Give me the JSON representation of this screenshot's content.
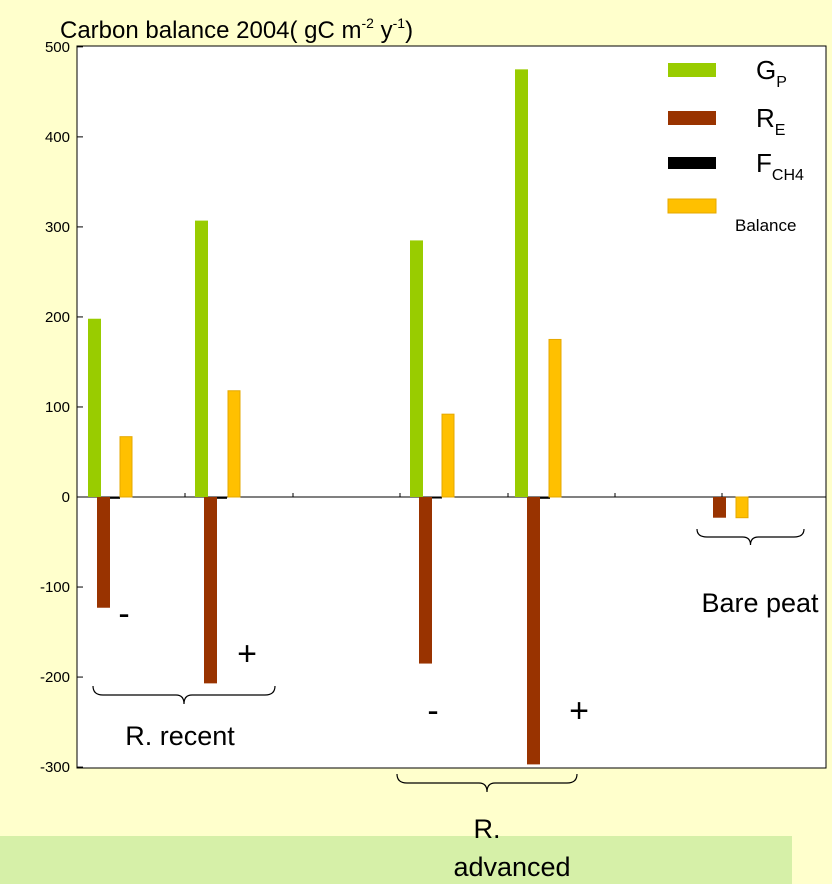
{
  "chart_data": {
    "type": "bar",
    "title": {
      "main": "Carbon balance 2004( gC m",
      "sup1": "-2",
      "mid": " y",
      "sup2": "-1",
      "end": ")"
    },
    "ylim": [
      -300,
      500
    ],
    "y_ticks": [
      "500",
      "400",
      "300",
      "200",
      "100",
      "0",
      "-100",
      "-200",
      "-300"
    ],
    "grid": false,
    "legend_position": "top-right",
    "categories": [
      "R. recent -",
      "R. recent +",
      "R. advanced -",
      "R. advanced +",
      "Bare peat"
    ],
    "series": [
      {
        "name": "G_P",
        "color": "#99cc00",
        "values": [
          198,
          307,
          285,
          475,
          0
        ]
      },
      {
        "name": "R_E",
        "color": "#993300",
        "values": [
          -123,
          -207,
          -185,
          -297,
          -23
        ]
      },
      {
        "name": "F_CH4",
        "color": "#000000",
        "values": [
          -2,
          -2,
          -1,
          -2,
          0
        ]
      },
      {
        "name": "Balance",
        "color": "#ffc000",
        "values": [
          67,
          118,
          92,
          175,
          -23
        ]
      }
    ],
    "legend": [
      {
        "base": "G",
        "sub": "P",
        "color": "#99cc00"
      },
      {
        "base": "R",
        "sub": "E",
        "color": "#993300"
      },
      {
        "base": "F",
        "sub": "CH4",
        "color": "#000000"
      },
      {
        "base": "Balance",
        "sub": "",
        "color": "#ffc000"
      }
    ],
    "annotations": {
      "signs": [
        "-",
        "+",
        "-",
        "+"
      ],
      "group_labels": {
        "recent": "R. recent",
        "advanced_line1": "R.",
        "advanced_line2": "advanced",
        "bare": "Bare peat"
      }
    }
  }
}
